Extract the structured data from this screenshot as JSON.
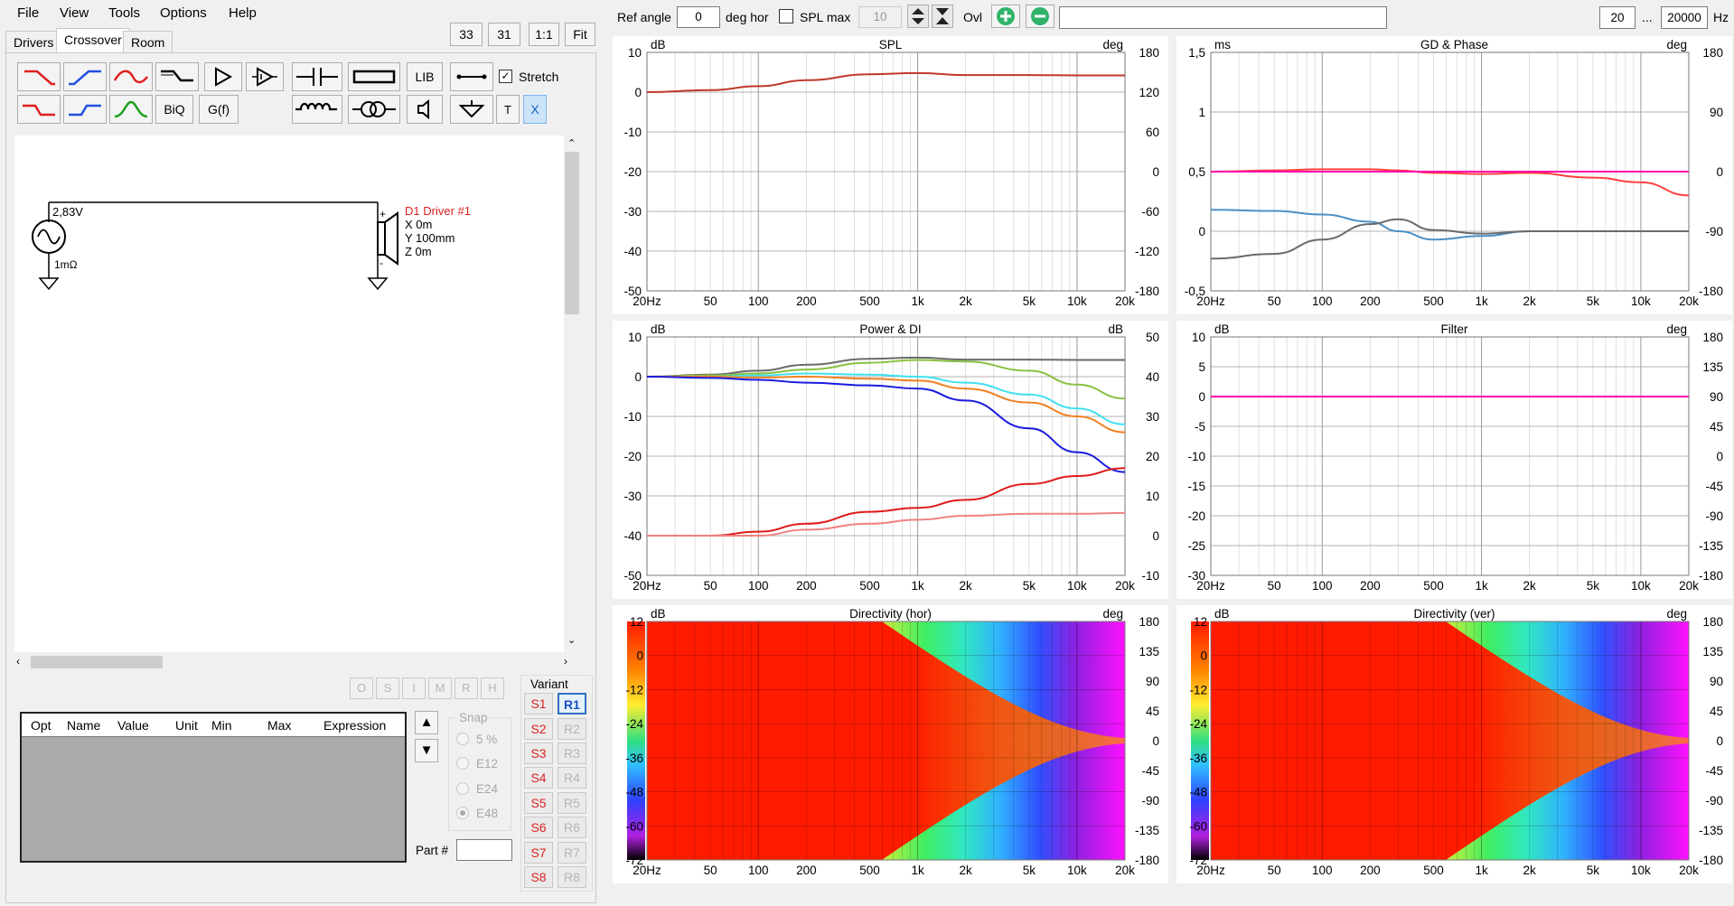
{
  "menu": {
    "file": "File",
    "view": "View",
    "tools": "Tools",
    "options": "Options",
    "help": "Help"
  },
  "zoom": {
    "b33": "33",
    "b31": "31",
    "b11": "1:1",
    "fit": "Fit"
  },
  "tabs": {
    "drivers": "Drivers",
    "crossover": "Crossover",
    "room": "Room"
  },
  "toolbox": {
    "lib": "LIB",
    "biq": "BiQ",
    "gf": "G(f)",
    "t": "T",
    "x": "X",
    "stretch": "Stretch"
  },
  "schematic": {
    "voltage": "2,83V",
    "resistance": "1mΩ",
    "driver_name": "D1 Driver #1",
    "x": "X 0m",
    "y": "Y 100mm",
    "z": "Z 0m",
    "plus": "+",
    "minus": "-"
  },
  "opt_buttons": [
    "O",
    "S",
    "I",
    "M",
    "R",
    "H"
  ],
  "table": {
    "headers": [
      "Opt",
      "Name",
      "Value",
      "Unit",
      "Min",
      "Max",
      "Expression"
    ]
  },
  "snap": {
    "label": "Snap",
    "options": [
      "5 %",
      "E12",
      "E24",
      "E48"
    ]
  },
  "part": {
    "label": "Part #",
    "value": ""
  },
  "variant": {
    "label": "Variant",
    "s": [
      "S1",
      "S2",
      "S3",
      "S4",
      "S5",
      "S6",
      "S7",
      "S8"
    ],
    "r": [
      "R1",
      "R2",
      "R3",
      "R4",
      "R5",
      "R6",
      "R7",
      "R8"
    ]
  },
  "topbar": {
    "ref_angle_label": "Ref angle",
    "ref_angle_value": "0",
    "deg_hor": "deg hor",
    "spl_max_label": "SPL max",
    "spl_max_value": "10",
    "ovl": "Ovl",
    "freq_from": "20",
    "ellipsis": "...",
    "freq_to": "20000",
    "hz": "Hz",
    "comment": ""
  },
  "x_ticks": [
    "20Hz",
    "50",
    "100",
    "200",
    "500",
    "1k",
    "2k",
    "5k",
    "10k",
    "20k"
  ],
  "charts": {
    "spl": {
      "title": "SPL",
      "lunit": "dB",
      "runit": "deg",
      "left": [
        "10",
        "0",
        "-10",
        "-20",
        "-30",
        "-40",
        "-50"
      ],
      "right": [
        "180",
        "120",
        "60",
        "0",
        "-60",
        "-120",
        "-180"
      ]
    },
    "gd": {
      "title": "GD & Phase",
      "lunit": "ms",
      "runit": "deg",
      "left": [
        "1,5",
        "1",
        "0,5",
        "0",
        "-0,5"
      ],
      "right": [
        "180",
        "90",
        "0",
        "-90",
        "-180"
      ]
    },
    "power": {
      "title": "Power & DI",
      "lunit": "dB",
      "runit": "dB",
      "left": [
        "10",
        "0",
        "-10",
        "-20",
        "-30",
        "-40",
        "-50"
      ],
      "right": [
        "50",
        "40",
        "30",
        "20",
        "10",
        "0",
        "-10"
      ]
    },
    "filter": {
      "title": "Filter",
      "lunit": "dB",
      "runit": "deg",
      "left": [
        "10",
        "5",
        "0",
        "-5",
        "-10",
        "-15",
        "-20",
        "-25",
        "-30"
      ],
      "right": [
        "180",
        "135",
        "90",
        "45",
        "0",
        "-45",
        "-90",
        "-135",
        "-180"
      ]
    },
    "dirh": {
      "title": "Directivity (hor)",
      "lunit": "dB",
      "runit": "deg",
      "left": [
        "12",
        "0",
        "-12",
        "-24",
        "-36",
        "-48",
        "-60",
        "-72"
      ],
      "right": [
        "180",
        "135",
        "90",
        "45",
        "0",
        "-45",
        "-90",
        "-135",
        "-180"
      ]
    },
    "dirv": {
      "title": "Directivity (ver)",
      "lunit": "dB",
      "runit": "deg",
      "left": [
        "12",
        "0",
        "-12",
        "-24",
        "-36",
        "-48",
        "-60",
        "-72"
      ],
      "right": [
        "180",
        "135",
        "90",
        "45",
        "0",
        "-45",
        "-90",
        "-135",
        "-180"
      ]
    }
  },
  "chart_data": [
    {
      "type": "line",
      "title": "SPL",
      "xlabel": "",
      "ylabel": "dB",
      "x": [
        20,
        50,
        100,
        200,
        500,
        1000,
        2000,
        5000,
        10000,
        20000
      ],
      "series": [
        {
          "values": [
            0,
            0.5,
            1.5,
            3,
            4.5,
            4.8,
            4.3,
            4.3,
            4.2,
            4.2
          ],
          "color": "#c0392b"
        }
      ],
      "ylim": [
        -50,
        10
      ],
      "xscale": "log"
    },
    {
      "type": "line",
      "title": "GD & Phase",
      "ylabel": "ms",
      "x": [
        20,
        50,
        100,
        200,
        300,
        500,
        1000,
        2000,
        5000,
        10000,
        20000
      ],
      "series": [
        {
          "values": [
            0.5,
            0.51,
            0.52,
            0.52,
            0.51,
            0.49,
            0.48,
            0.49,
            0.45,
            0.41,
            0.3
          ],
          "color": "#ff4040"
        },
        {
          "values": [
            0.5,
            0.5,
            0.5,
            0.5,
            0.5,
            0.5,
            0.5,
            0.5,
            0.5,
            0.5,
            0.5
          ],
          "color": "#ff00aa"
        },
        {
          "values": [
            0.18,
            0.17,
            0.14,
            0.08,
            0,
            -0.07,
            -0.04,
            0,
            0,
            0,
            0
          ],
          "color": "#4a90c8"
        },
        {
          "values": [
            -0.23,
            -0.19,
            -0.07,
            0.06,
            0.1,
            0.01,
            -0.02,
            0,
            0,
            0,
            0
          ],
          "color": "#6a6a6a"
        }
      ],
      "ylim": [
        -0.5,
        1.5
      ],
      "xscale": "log"
    },
    {
      "type": "line",
      "title": "Power & DI",
      "ylabel": "dB",
      "x": [
        20,
        50,
        100,
        200,
        500,
        1000,
        2000,
        5000,
        10000,
        20000
      ],
      "series": [
        {
          "values": [
            0,
            0.5,
            1.5,
            3,
            4.5,
            4.8,
            4.3,
            4.3,
            4.2,
            4.2
          ],
          "color": "#6a6a6a"
        },
        {
          "values": [
            0,
            0.3,
            0.8,
            1.8,
            3.5,
            4.2,
            3.8,
            1.5,
            -2,
            -5.5
          ],
          "color": "#8ac040"
        },
        {
          "values": [
            0,
            0,
            0.3,
            0.8,
            0.5,
            0,
            -1.5,
            -4.5,
            -8,
            -12
          ],
          "color": "#40e0f0"
        },
        {
          "values": [
            0,
            0,
            -0.2,
            0,
            -0.5,
            -1,
            -3,
            -6.5,
            -10,
            -14
          ],
          "color": "#f08020"
        },
        {
          "values": [
            0,
            -0.3,
            -0.8,
            -1.5,
            -2.2,
            -3,
            -6,
            -13,
            -19,
            -24
          ],
          "color": "#1a1ae0"
        },
        {
          "values": [
            -40,
            -40,
            -39,
            -37,
            -34,
            -33,
            -31,
            -27,
            -25,
            -23
          ],
          "color": "#e01a1a"
        },
        {
          "values": [
            -40,
            -40,
            -40,
            -38.5,
            -37,
            -36,
            -35,
            -34.5,
            -34.5,
            -34.3
          ],
          "color": "#f08080"
        }
      ],
      "ylim": [
        -50,
        10
      ],
      "xscale": "log"
    },
    {
      "type": "line",
      "title": "Filter",
      "ylabel": "dB",
      "x": [
        20,
        20000
      ],
      "series": [
        {
          "values": [
            0,
            0
          ],
          "color": "#ff00aa"
        }
      ],
      "ylim": [
        -30,
        10
      ],
      "xscale": "log"
    },
    {
      "type": "heatmap",
      "title": "Directivity (hor)",
      "ylabel": "deg",
      "zlabel": "dB",
      "zlim": [
        -72,
        12
      ],
      "xscale": "log"
    },
    {
      "type": "heatmap",
      "title": "Directivity (ver)",
      "ylabel": "deg",
      "zlabel": "dB",
      "zlim": [
        -72,
        12
      ],
      "xscale": "log"
    }
  ]
}
